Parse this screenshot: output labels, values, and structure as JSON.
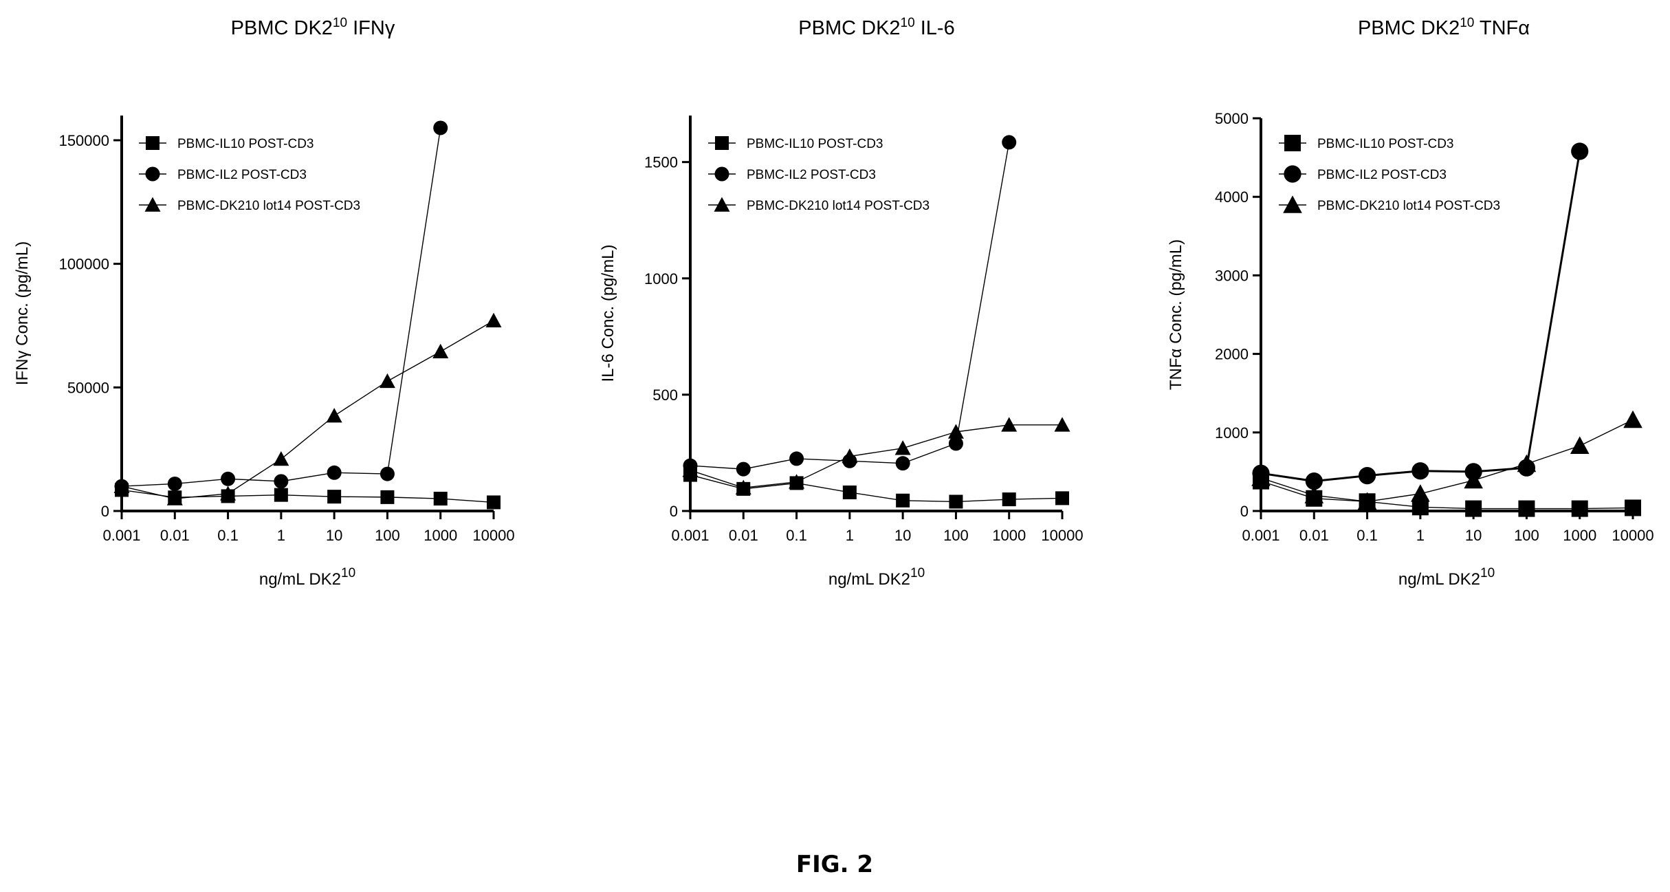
{
  "figure_label": "FIG. 2",
  "chart_data": [
    {
      "type": "line",
      "title": "PBMC DK2",
      "title_sup": "10",
      "title_tail": " IFNγ",
      "xlabel": "ng/mL DK2",
      "xlabel_sup": "10",
      "ylabel": "IFNγ Conc. (pg/mL)",
      "x_scale": "log",
      "x": [
        0.001,
        0.01,
        0.1,
        1,
        10,
        100,
        1000,
        10000
      ],
      "x_tick_labels": [
        "0.001",
        "0.01",
        "0.1",
        "1",
        "10",
        "100",
        "1000",
        "10000"
      ],
      "ylim": [
        0,
        160000
      ],
      "y_ticks": [
        0,
        50000,
        100000,
        150000
      ],
      "y_tick_labels": [
        "0",
        "50000",
        "100000",
        "150000"
      ],
      "legend_position": "top-left",
      "series": [
        {
          "name": "PBMC-IL10 POST-CD3",
          "marker": "square",
          "values": [
            8500,
            5500,
            6000,
            6500,
            5800,
            5600,
            5000,
            3500
          ]
        },
        {
          "name": "PBMC-IL2 POST-CD3",
          "marker": "circle",
          "values": [
            10000,
            11000,
            13000,
            12000,
            15500,
            15000,
            155000,
            null
          ]
        },
        {
          "name": "PBMC-DK210 lot14 POST-CD3",
          "marker": "triangle",
          "values": [
            10000,
            5000,
            7000,
            21000,
            38500,
            52500,
            64500,
            77000
          ]
        }
      ]
    },
    {
      "type": "line",
      "title": "PBMC DK2",
      "title_sup": "10",
      "title_tail": " IL-6",
      "xlabel": "ng/mL DK2",
      "xlabel_sup": "10",
      "ylabel": "IL-6 Conc. (pg/mL)",
      "x_scale": "log",
      "x": [
        0.001,
        0.01,
        0.1,
        1,
        10,
        100,
        1000,
        10000
      ],
      "x_tick_labels": [
        "0.001",
        "0.01",
        "0.1",
        "1",
        "10",
        "100",
        "1000",
        "10000"
      ],
      "ylim": [
        0,
        1700
      ],
      "y_ticks": [
        0,
        500,
        1000,
        1500
      ],
      "y_tick_labels": [
        "0",
        "500",
        "1000",
        "1500"
      ],
      "legend_position": "top-left",
      "series": [
        {
          "name": "PBMC-IL10 POST-CD3",
          "marker": "square",
          "values": [
            155,
            95,
            120,
            80,
            45,
            40,
            50,
            55
          ]
        },
        {
          "name": "PBMC-IL2 POST-CD3",
          "marker": "circle",
          "values": [
            195,
            180,
            225,
            215,
            205,
            290,
            1585,
            null
          ]
        },
        {
          "name": "PBMC-DK210 lot14 POST-CD3",
          "marker": "triangle",
          "values": [
            175,
            100,
            125,
            235,
            270,
            340,
            370,
            370
          ]
        }
      ]
    },
    {
      "type": "line",
      "title": "PBMC DK2",
      "title_sup": "10",
      "title_tail": " TNFα",
      "xlabel": "ng/mL DK2",
      "xlabel_sup": "10",
      "ylabel": "TNFα Conc. (pg/mL)",
      "x_scale": "log",
      "x": [
        0.001,
        0.01,
        0.1,
        1,
        10,
        100,
        1000,
        10000
      ],
      "x_tick_labels": [
        "0.001",
        "0.01",
        "0.1",
        "1",
        "10",
        "100",
        "1000",
        "10000"
      ],
      "ylim": [
        0,
        5000
      ],
      "y_ticks": [
        0,
        1000,
        2000,
        3000,
        4000,
        5000
      ],
      "y_tick_labels": [
        "0",
        "1000",
        "2000",
        "3000",
        "4000",
        "5000"
      ],
      "legend_position": "top-left",
      "series": [
        {
          "name": "PBMC-IL10 POST-CD3",
          "marker": "square",
          "values": [
            380,
            160,
            120,
            50,
            30,
            30,
            30,
            40
          ]
        },
        {
          "name": "PBMC-IL2 POST-CD3",
          "marker": "circle",
          "values": [
            480,
            380,
            450,
            510,
            500,
            550,
            4580,
            null
          ]
        },
        {
          "name": "PBMC-DK210 lot14 POST-CD3",
          "marker": "triangle",
          "values": [
            420,
            200,
            120,
            220,
            390,
            600,
            830,
            1160
          ]
        }
      ]
    }
  ]
}
